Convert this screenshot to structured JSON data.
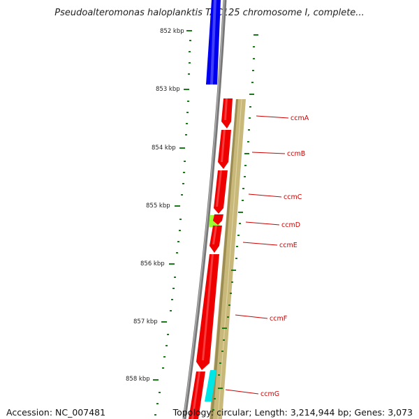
{
  "title": "Pseudoalteromonas haloplanktis TAC125 chromosome I, complete...",
  "accession": "Accession: NC_007481",
  "topology": "Topology: circular; Length: 3,214,944 bp; Genes: 3,073",
  "kbp_labels": [
    "852 kbp",
    "853 kbp",
    "854 kbp",
    "855 kbp",
    "856 kbp",
    "857 kbp",
    "858 kbp"
  ],
  "gene_labels": [
    "ccmA",
    "ccmB",
    "ccmC",
    "ccmD",
    "ccmE",
    "ccmF",
    "ccmG"
  ],
  "colors": {
    "gene_forward": "#ee0000",
    "gene_reverse_blue": "#0000ee",
    "backbone": "#777777",
    "band": "#c8b97a",
    "ccmD_highlight": "#99ff33",
    "ccmG_highlight": "#00e5e5",
    "tick": "#1a7a1a",
    "label": "#cc0000"
  }
}
